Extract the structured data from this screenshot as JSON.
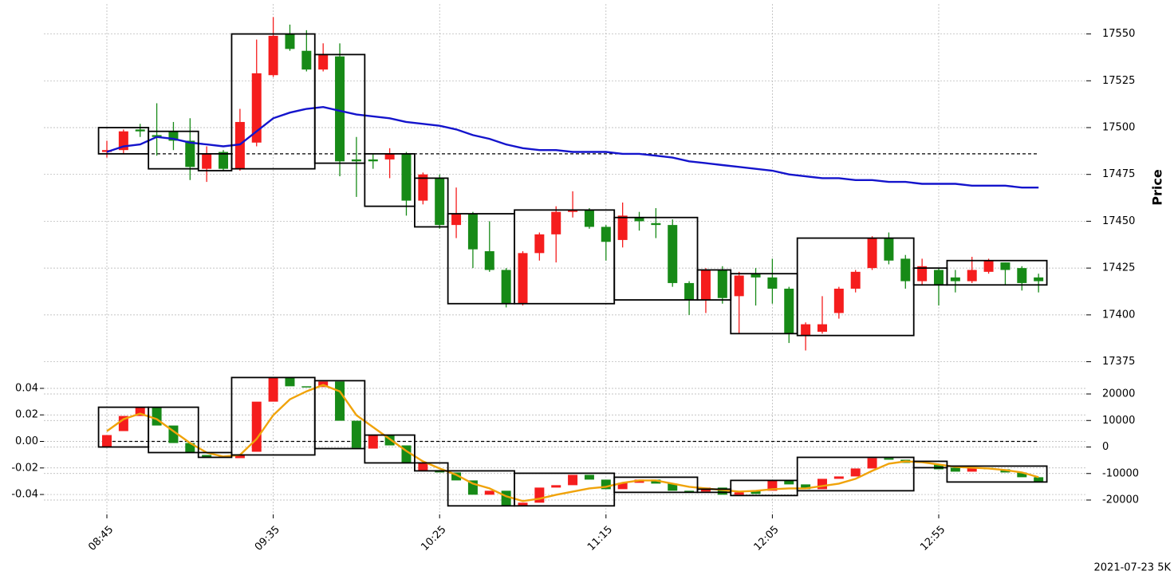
{
  "chart_data": [
    {
      "type": "candlestick",
      "ylabel": "Price",
      "caption": "2021-07-23 5K",
      "categories": [
        "08:45",
        null,
        null,
        null,
        null,
        null,
        null,
        null,
        null,
        null,
        "09:35",
        null,
        null,
        null,
        null,
        null,
        null,
        null,
        null,
        null,
        "10:25",
        null,
        null,
        null,
        null,
        null,
        null,
        null,
        null,
        null,
        "11:15",
        null,
        null,
        null,
        null,
        null,
        null,
        null,
        null,
        null,
        "12:05",
        null,
        null,
        null,
        null,
        null,
        null,
        null,
        null,
        null,
        "12:55",
        null,
        null,
        null,
        null,
        null,
        null
      ],
      "open": [
        17487,
        17488,
        17499,
        17496,
        17498,
        17493,
        17478,
        17487,
        17478,
        17492,
        17528,
        17550,
        17541,
        17531,
        17538,
        17483,
        17483,
        17483,
        17486,
        17461,
        17473,
        17448,
        17454,
        17434,
        17424,
        17406,
        17433,
        17443,
        17455,
        17456,
        17447,
        17440,
        17452,
        17449,
        17448,
        17417,
        17408,
        17424,
        17410,
        17422,
        17420,
        17414,
        17389,
        17391,
        17401,
        17414,
        17425,
        17441,
        17430,
        17418,
        17424,
        17420,
        17418,
        17423,
        17428,
        17425,
        17420
      ],
      "high": [
        17493,
        17499,
        17502,
        17513,
        17503,
        17505,
        17490,
        17488,
        17510,
        17547,
        17559,
        17555,
        17552,
        17545,
        17545,
        17495,
        17486,
        17489,
        17487,
        17476,
        17475,
        17468,
        17455,
        17450,
        17425,
        17434,
        17444,
        17458,
        17466,
        17457,
        17448,
        17460,
        17455,
        17457,
        17451,
        17418,
        17425,
        17426,
        17423,
        17425,
        17430,
        17415,
        17396,
        17410,
        17415,
        17424,
        17442,
        17444,
        17432,
        17430,
        17425,
        17424,
        17431,
        17430,
        17428,
        17426,
        17422
      ],
      "low": [
        17484,
        17486,
        17495,
        17485,
        17488,
        17472,
        17471,
        17477,
        17477,
        17490,
        17527,
        17541,
        17530,
        17530,
        17474,
        17463,
        17478,
        17473,
        17453,
        17459,
        17446,
        17441,
        17425,
        17423,
        17404,
        17405,
        17429,
        17428,
        17452,
        17446,
        17429,
        17436,
        17445,
        17441,
        17415,
        17400,
        17401,
        17406,
        17390,
        17405,
        17406,
        17385,
        17381,
        17390,
        17398,
        17412,
        17424,
        17427,
        17414,
        17416,
        17405,
        17412,
        17417,
        17422,
        17416,
        17413,
        17412
      ],
      "close": [
        17488,
        17498,
        17498,
        17495,
        17493,
        17479,
        17486,
        17478,
        17503,
        17529,
        17549,
        17542,
        17531,
        17539,
        17482,
        17482,
        17482,
        17486,
        17461,
        17475,
        17448,
        17454,
        17435,
        17424,
        17406,
        17433,
        17443,
        17455,
        17456,
        17447,
        17439,
        17453,
        17450,
        17448,
        17417,
        17408,
        17424,
        17409,
        17421,
        17420,
        17414,
        17390,
        17395,
        17395,
        17414,
        17423,
        17441,
        17429,
        17418,
        17426,
        17416,
        17418,
        17424,
        17429,
        17424,
        17417,
        17418
      ],
      "up_color": "#f51d1d",
      "down_color": "#178a17",
      "lines": [
        {
          "color": "#1414cc",
          "values": [
            17487,
            17490,
            17491,
            17495,
            17494,
            17492,
            17491,
            17490,
            17491,
            17498,
            17505,
            17508,
            17510,
            17511,
            17509,
            17507,
            17506,
            17505,
            17503,
            17502,
            17501,
            17499,
            17496,
            17494,
            17491,
            17489,
            17488,
            17488,
            17487,
            17487,
            17487,
            17486,
            17486,
            17485,
            17484,
            17482,
            17481,
            17480,
            17479,
            17478,
            17477,
            17475,
            17474,
            17473,
            17473,
            17472,
            17472,
            17471,
            17471,
            17470,
            17470,
            17470,
            17469,
            17469,
            17469,
            17468,
            17468
          ]
        }
      ],
      "hline": 17486,
      "boxes": [
        {
          "start": 0,
          "end": 2,
          "low": 17486,
          "high": 17500
        },
        {
          "start": 3,
          "end": 5,
          "low": 17478,
          "high": 17498
        },
        {
          "start": 6,
          "end": 7,
          "low": 17477,
          "high": 17486
        },
        {
          "start": 8,
          "end": 12,
          "low": 17478,
          "high": 17550
        },
        {
          "start": 13,
          "end": 15,
          "low": 17481,
          "high": 17539
        },
        {
          "start": 16,
          "end": 18,
          "low": 17458,
          "high": 17486
        },
        {
          "start": 19,
          "end": 20,
          "low": 17447,
          "high": 17473
        },
        {
          "start": 21,
          "end": 24,
          "low": 17406,
          "high": 17454
        },
        {
          "start": 25,
          "end": 30,
          "low": 17406,
          "high": 17456
        },
        {
          "start": 31,
          "end": 35,
          "low": 17408,
          "high": 17452
        },
        {
          "start": 36,
          "end": 37,
          "low": 17408,
          "high": 17424
        },
        {
          "start": 38,
          "end": 41,
          "low": 17390,
          "high": 17422
        },
        {
          "start": 42,
          "end": 48,
          "low": 17389,
          "high": 17441
        },
        {
          "start": 49,
          "end": 50,
          "low": 17416,
          "high": 17425
        },
        {
          "start": 51,
          "end": 56,
          "low": 17416,
          "high": 17429
        }
      ],
      "ylim": [
        17368,
        17566
      ],
      "yticks": [
        17375,
        17400,
        17425,
        17450,
        17475,
        17500,
        17525,
        17550
      ],
      "grid": true
    },
    {
      "type": "candlestick",
      "open": [
        0,
        6000,
        11700,
        15000,
        8100,
        1500,
        -3000,
        -3900,
        -4200,
        -1800,
        17100,
        26200,
        22900,
        22600,
        24700,
        9900,
        -600,
        4500,
        600,
        -9000,
        -8700,
        -9600,
        -12600,
        -18000,
        -16500,
        -22200,
        -21000,
        -15300,
        -14400,
        -10500,
        -12300,
        -15900,
        -13500,
        -12300,
        -13800,
        -16500,
        -16800,
        -15300,
        -18000,
        -16500,
        -16500,
        -12600,
        -14100,
        -15900,
        -12000,
        -11100,
        -8100,
        -4200,
        -4800,
        -6000,
        -6600,
        -7800,
        -9300,
        -7800,
        -8400,
        -9600,
        -11400
      ],
      "close": [
        4500,
        11700,
        15000,
        8100,
        1500,
        -2100,
        -3900,
        -3600,
        -3000,
        17100,
        26200,
        22900,
        22600,
        24700,
        9900,
        -300,
        4500,
        600,
        -6000,
        -6000,
        -9600,
        -12600,
        -18000,
        -16500,
        -22200,
        -21000,
        -15300,
        -14400,
        -10500,
        -12300,
        -15900,
        -13500,
        -12300,
        -13800,
        -16500,
        -16800,
        -15300,
        -18000,
        -17100,
        -17700,
        -12600,
        -14100,
        -15900,
        -12000,
        -11100,
        -8100,
        -4200,
        -4800,
        -6000,
        -5400,
        -8400,
        -9300,
        -7800,
        -8400,
        -9600,
        -11400,
        -13200
      ],
      "up_color": "#f51d1d",
      "down_color": "#178a17",
      "lines": [
        {
          "color": "#f0a30a",
          "values": [
            6000,
            10500,
            12600,
            10500,
            6000,
            1500,
            -2100,
            -3600,
            -3000,
            3000,
            12000,
            18000,
            21000,
            23400,
            21000,
            12000,
            7500,
            3000,
            -1500,
            -5400,
            -8100,
            -10500,
            -13800,
            -15600,
            -18600,
            -20400,
            -19500,
            -18000,
            -16800,
            -15600,
            -15000,
            -13500,
            -12600,
            -12600,
            -13800,
            -15000,
            -15600,
            -16200,
            -16800,
            -16500,
            -15900,
            -15600,
            -15600,
            -14700,
            -13800,
            -12000,
            -9000,
            -6300,
            -5400,
            -5700,
            -6600,
            -7500,
            -7800,
            -8100,
            -8700,
            -9600,
            -11400
          ]
        }
      ],
      "hline": 0,
      "boxes": [
        {
          "start": 0,
          "end": 2,
          "low": 0,
          "high": 15000
        },
        {
          "start": 3,
          "end": 5,
          "low": -2100,
          "high": 15000
        },
        {
          "start": 6,
          "end": 7,
          "low": -3900,
          "high": -2100
        },
        {
          "start": 8,
          "end": 12,
          "low": -3000,
          "high": 26200
        },
        {
          "start": 13,
          "end": 15,
          "low": -600,
          "high": 25000
        },
        {
          "start": 16,
          "end": 18,
          "low": -6000,
          "high": 4500
        },
        {
          "start": 19,
          "end": 20,
          "low": -9000,
          "high": -6000
        },
        {
          "start": 21,
          "end": 24,
          "low": -22200,
          "high": -9000
        },
        {
          "start": 25,
          "end": 30,
          "low": -22200,
          "high": -9900
        },
        {
          "start": 31,
          "end": 35,
          "low": -17100,
          "high": -11400
        },
        {
          "start": 36,
          "end": 37,
          "low": -17100,
          "high": -15900
        },
        {
          "start": 38,
          "end": 41,
          "low": -18300,
          "high": -12600
        },
        {
          "start": 42,
          "end": 48,
          "low": -16500,
          "high": -3900
        },
        {
          "start": 49,
          "end": 50,
          "low": -7800,
          "high": -5400
        },
        {
          "start": 51,
          "end": 56,
          "low": -13200,
          "high": -7200
        }
      ],
      "ylim": [
        -0.055,
        0.0502
      ],
      "yticks": [
        -0.04,
        -0.02,
        {
          "value": 0,
          "label": "0.00"
        },
        0.02,
        0.04
      ],
      "y2lim": [
        -25413,
        27218
      ],
      "y2ticks": [
        -20000,
        -10000,
        0,
        10000,
        20000
      ],
      "grid": true
    }
  ]
}
